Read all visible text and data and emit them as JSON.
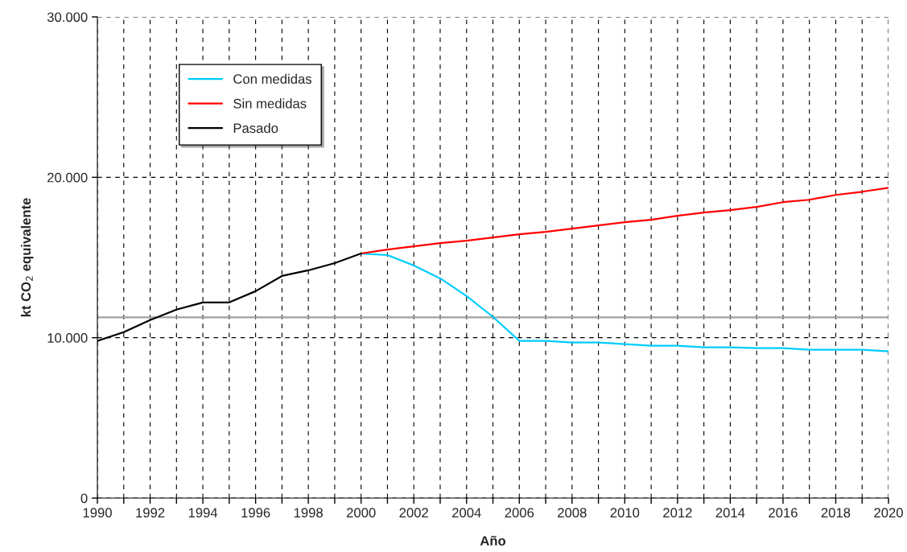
{
  "chart_data": {
    "type": "line",
    "xlabel": "Año",
    "ylabel": "kt CO$_{2}$ equivalente",
    "series": [
      {
        "name": "Con medidas",
        "color": "#00ccff",
        "x": [
          2000,
          2001,
          2002,
          2003,
          2004,
          2005,
          2006,
          2007,
          2008,
          2009,
          2010,
          2011,
          2012,
          2013,
          2014,
          2015,
          2016,
          2017,
          2018,
          2019,
          2020
        ],
        "values": [
          15250,
          15150,
          14500,
          13700,
          12600,
          11300,
          9800,
          9800,
          9700,
          9700,
          9600,
          9500,
          9500,
          9400,
          9400,
          9350,
          9350,
          9250,
          9250,
          9250,
          9150
        ]
      },
      {
        "name": "Sin medidas",
        "color": "#ff0000",
        "x": [
          2000,
          2001,
          2002,
          2003,
          2004,
          2005,
          2006,
          2007,
          2008,
          2009,
          2010,
          2011,
          2012,
          2013,
          2014,
          2015,
          2016,
          2017,
          2018,
          2019,
          2020
        ],
        "values": [
          15250,
          15500,
          15700,
          15900,
          16050,
          16250,
          16450,
          16600,
          16800,
          17000,
          17200,
          17350,
          17600,
          17800,
          17950,
          18150,
          18450,
          18600,
          18900,
          19100,
          19350
        ]
      },
      {
        "name": "Pasado",
        "color": "#000000",
        "x": [
          1990,
          1991,
          1992,
          1993,
          1994,
          1995,
          1996,
          1997,
          1998,
          1999,
          2000
        ],
        "values": [
          9800,
          10350,
          11100,
          11750,
          12200,
          12200,
          12900,
          13850,
          14200,
          14650,
          15250
        ]
      }
    ],
    "ref_lines": [
      {
        "axis": "y",
        "value": 11270,
        "color": "#a0a0a0",
        "line_style": "solid"
      }
    ],
    "xlim": [
      1990,
      2020
    ],
    "xticks": [
      1990,
      {
        "value": 1991,
        "label": null
      },
      1992,
      {
        "value": 1993,
        "label": null
      },
      1994,
      {
        "value": 1995,
        "label": null
      },
      1996,
      {
        "value": 1997,
        "label": null
      },
      1998,
      {
        "value": 1999,
        "label": null
      },
      2000,
      {
        "value": 2001,
        "label": null
      },
      2002,
      {
        "value": 2003,
        "label": null
      },
      2004,
      {
        "value": 2005,
        "label": null
      },
      2006,
      {
        "value": 2007,
        "label": null
      },
      2008,
      {
        "value": 2009,
        "label": null
      },
      2010,
      {
        "value": 2011,
        "label": null
      },
      2012,
      {
        "value": 2013,
        "label": null
      },
      2014,
      {
        "value": 2015,
        "label": null
      },
      2016,
      {
        "value": 2017,
        "label": null
      },
      2018,
      {
        "value": 2019,
        "label": null
      },
      2020
    ],
    "ylim": [
      0,
      30000
    ],
    "yticks": [
      0,
      {
        "value": 10000,
        "label": "10.000"
      },
      {
        "value": 20000,
        "label": "20.000"
      },
      {
        "value": 30000,
        "label": "30.000"
      }
    ],
    "grid": true,
    "legend": "top left",
    "marker": "none",
    "line_style": "solid"
  }
}
